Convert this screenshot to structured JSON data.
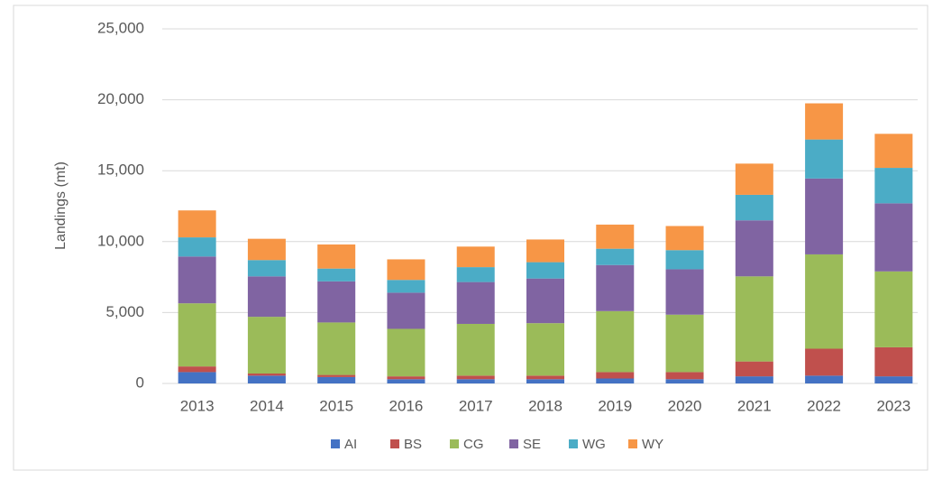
{
  "chart_data": {
    "type": "stacked_bar",
    "y_label": "Landings (mt)",
    "categories": [
      "2013",
      "2014",
      "2015",
      "2016",
      "2017",
      "2018",
      "2019",
      "2020",
      "2021",
      "2022",
      "2023"
    ],
    "series": [
      {
        "name": "AI",
        "color": "#4472c4",
        "values": [
          800,
          550,
          450,
          300,
          300,
          300,
          350,
          300,
          500,
          550,
          500
        ]
      },
      {
        "name": "BS",
        "color": "#c0504d",
        "values": [
          400,
          150,
          150,
          200,
          250,
          250,
          450,
          500,
          1050,
          1900,
          2050
        ]
      },
      {
        "name": "CG",
        "color": "#9bbb59",
        "values": [
          4450,
          4000,
          3700,
          3350,
          3650,
          3700,
          4300,
          4050,
          6000,
          6650,
          5350
        ]
      },
      {
        "name": "SE",
        "color": "#8064a2",
        "values": [
          3300,
          2850,
          2900,
          2550,
          2950,
          3150,
          3250,
          3200,
          3950,
          5350,
          4800
        ]
      },
      {
        "name": "WG",
        "color": "#4bacc6",
        "values": [
          1350,
          1150,
          900,
          900,
          1050,
          1150,
          1150,
          1350,
          1800,
          2750,
          2500
        ]
      },
      {
        "name": "WY",
        "color": "#f79646",
        "values": [
          1900,
          1500,
          1700,
          1450,
          1450,
          1600,
          1700,
          1700,
          2200,
          2550,
          2400
        ]
      }
    ],
    "ylim": [
      0,
      25000
    ],
    "yticks": [
      0,
      {
        "value": 5000,
        "label": "5,000"
      },
      {
        "value": 10000,
        "label": "10,000"
      },
      {
        "value": 15000,
        "label": "15,000"
      },
      {
        "value": 20000,
        "label": "20,000"
      },
      {
        "value": 25000,
        "label": "25,000"
      }
    ],
    "grid": true,
    "legend": "bottom"
  }
}
